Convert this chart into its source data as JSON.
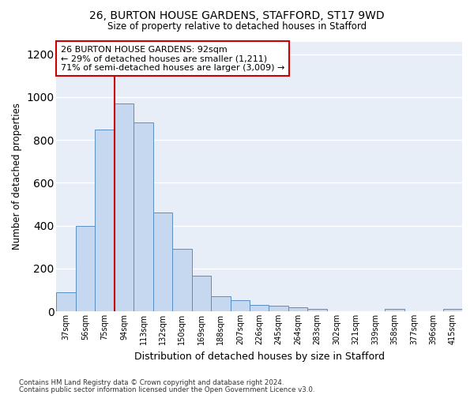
{
  "title1": "26, BURTON HOUSE GARDENS, STAFFORD, ST17 9WD",
  "title2": "Size of property relative to detached houses in Stafford",
  "xlabel": "Distribution of detached houses by size in Stafford",
  "ylabel": "Number of detached properties",
  "categories": [
    "37sqm",
    "56sqm",
    "75sqm",
    "94sqm",
    "113sqm",
    "132sqm",
    "150sqm",
    "169sqm",
    "188sqm",
    "207sqm",
    "226sqm",
    "245sqm",
    "264sqm",
    "283sqm",
    "302sqm",
    "321sqm",
    "339sqm",
    "358sqm",
    "377sqm",
    "396sqm",
    "415sqm"
  ],
  "values": [
    90,
    400,
    850,
    970,
    880,
    460,
    290,
    165,
    70,
    50,
    30,
    25,
    20,
    10,
    0,
    0,
    0,
    10,
    0,
    0,
    10
  ],
  "bar_color": "#c5d8f0",
  "bar_edge_color": "#5a8fc4",
  "vline_index": 3,
  "vline_color": "#cc0000",
  "annotation_text": "26 BURTON HOUSE GARDENS: 92sqm\n← 29% of detached houses are smaller (1,211)\n71% of semi-detached houses are larger (3,009) →",
  "annotation_box_color": "#ffffff",
  "annotation_box_edge_color": "#cc0000",
  "ylim": [
    0,
    1260
  ],
  "yticks": [
    0,
    200,
    400,
    600,
    800,
    1000,
    1200
  ],
  "background_color": "#e8eef8",
  "grid_color": "#ffffff",
  "footer1": "Contains HM Land Registry data © Crown copyright and database right 2024.",
  "footer2": "Contains public sector information licensed under the Open Government Licence v3.0."
}
